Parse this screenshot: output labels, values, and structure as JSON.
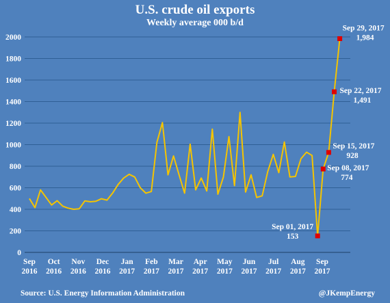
{
  "chart_data": {
    "type": "line",
    "title": "U.S. crude oil exports",
    "subtitle": "Weekly average 000 b/d",
    "ylim": [
      0,
      2000
    ],
    "yticks": [
      "0",
      "200",
      "400",
      "600",
      "800",
      "1000",
      "1200",
      "1400",
      "1600",
      "1800",
      "2000"
    ],
    "xticks": [
      {
        "line1": "Sep",
        "line2": "2016"
      },
      {
        "line1": "Oct",
        "line2": "2016"
      },
      {
        "line1": "Nov",
        "line2": "2016"
      },
      {
        "line1": "Dec",
        "line2": "2016"
      },
      {
        "line1": "Jan",
        "line2": "2017"
      },
      {
        "line1": "Feb",
        "line2": "2017"
      },
      {
        "line1": "Mar",
        "line2": "2017"
      },
      {
        "line1": "Apr",
        "line2": "2017"
      },
      {
        "line1": "May",
        "line2": "2017"
      },
      {
        "line1": "Jun",
        "line2": "2017"
      },
      {
        "line1": "Jul",
        "line2": "2017"
      },
      {
        "line1": "Aug",
        "line2": "2017"
      },
      {
        "line1": "Sep",
        "line2": "2017"
      }
    ],
    "grid": true,
    "line_color": "#f5c400",
    "marker_color": "#e00000",
    "series": [
      {
        "values": [
          500,
          415,
          580,
          510,
          440,
          480,
          430,
          410,
          400,
          405,
          478,
          470,
          475,
          498,
          485,
          550,
          630,
          690,
          725,
          700,
          600,
          550,
          565,
          1020,
          1205,
          720,
          895,
          720,
          550,
          1005,
          580,
          690,
          570,
          1145,
          540,
          700,
          1075,
          620,
          1300,
          560,
          720,
          510,
          525,
          750,
          910,
          740,
          1025,
          700,
          705,
          870,
          930,
          900,
          153,
          774,
          928,
          1491,
          1984
        ]
      }
    ],
    "annotations": [
      {
        "index": 52,
        "line1": "Sep 01, 2017",
        "line2": "153"
      },
      {
        "index": 53,
        "line1": "Sep 08, 2017",
        "line2": "774"
      },
      {
        "index": 54,
        "line1": "Sep 15, 2017",
        "line2": "928"
      },
      {
        "index": 55,
        "line1": "Sep 22, 2017",
        "line2": "1,491"
      },
      {
        "index": 56,
        "line1": "Sep 29, 2017",
        "line2": "1,984"
      }
    ],
    "source": "Source: U.S. Energy Information Administration",
    "credit": "@JKempEnergy"
  }
}
